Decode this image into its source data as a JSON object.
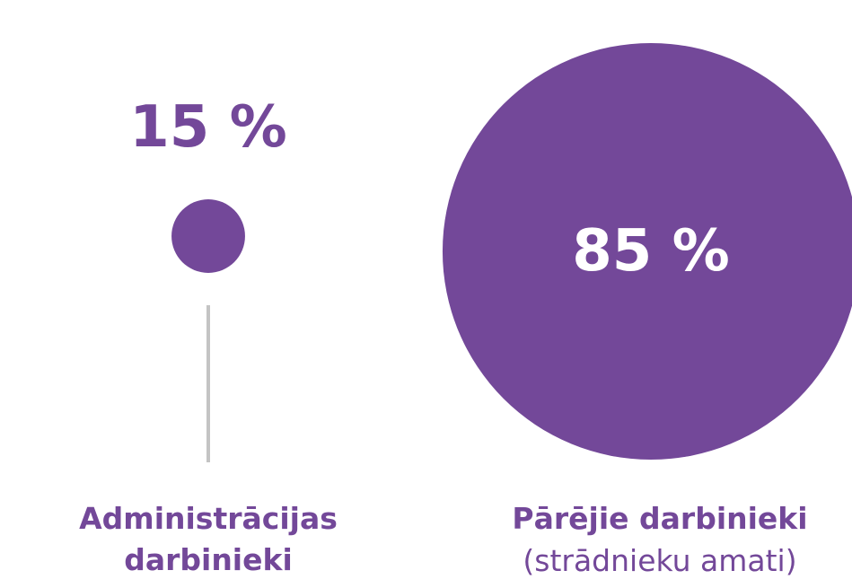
{
  "chart_data": {
    "type": "bubble",
    "categories": [
      "Administrācijas darbinieki",
      "Pārējie darbinieki"
    ],
    "values": [
      15,
      85
    ],
    "value_labels": [
      "15 %",
      "85 %"
    ],
    "annotation": "(strādnieku amati)",
    "color": "#734899"
  }
}
